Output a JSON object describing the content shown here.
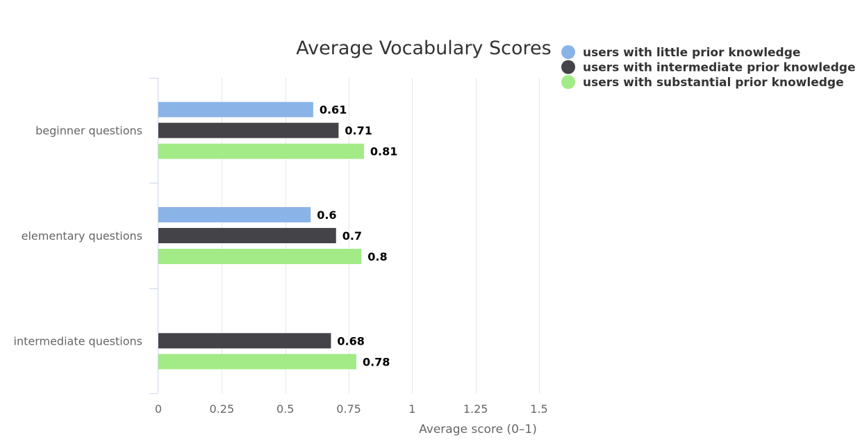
{
  "chart_data": {
    "type": "bar",
    "orientation": "horizontal",
    "title": "Average Vocabulary Scores",
    "xlabel": "Average score (0–1)",
    "ylabel": "",
    "xlim": [
      0,
      1.5
    ],
    "xticks": [
      0,
      0.25,
      0.5,
      0.75,
      1,
      1.25,
      1.5
    ],
    "xtick_labels": [
      "0",
      "0.25",
      "0.5",
      "0.75",
      "1",
      "1.25",
      "1.5"
    ],
    "grid": true,
    "legend_position": "top-right",
    "categories": [
      "beginner questions",
      "elementary questions",
      "intermediate questions"
    ],
    "series": [
      {
        "name": "users with little prior knowledge",
        "color": "#8ab4e8",
        "values": [
          0.61,
          0.6,
          null
        ]
      },
      {
        "name": "users with intermediate prior knowledge",
        "color": "#434348",
        "values": [
          0.71,
          0.7,
          0.68
        ]
      },
      {
        "name": "users with substantial prior knowledge",
        "color": "#a3eb87",
        "values": [
          0.81,
          0.8,
          0.78
        ]
      }
    ],
    "data_labels": true
  }
}
